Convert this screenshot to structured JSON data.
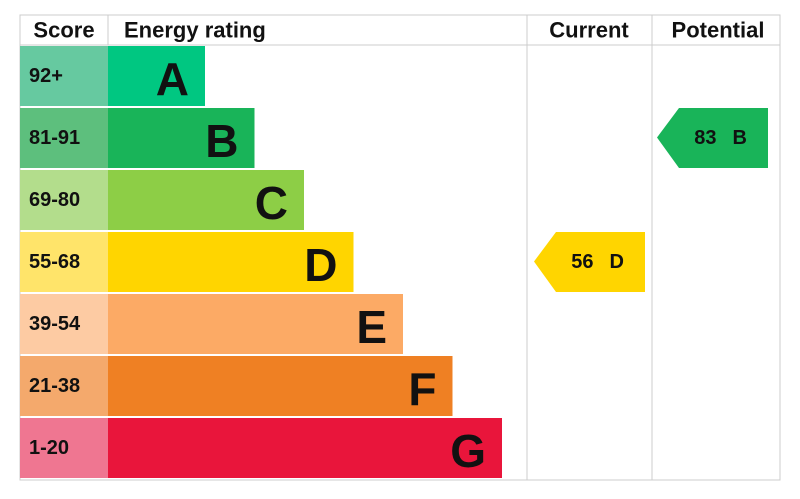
{
  "headers": {
    "score": "Score",
    "energy_rating": "Energy rating",
    "current": "Current",
    "potential": "Potential"
  },
  "bands": [
    {
      "score": "92+",
      "letter": "A"
    },
    {
      "score": "81-91",
      "letter": "B"
    },
    {
      "score": "69-80",
      "letter": "C"
    },
    {
      "score": "55-68",
      "letter": "D"
    },
    {
      "score": "39-54",
      "letter": "E"
    },
    {
      "score": "21-38",
      "letter": "F"
    },
    {
      "score": "1-20",
      "letter": "G"
    }
  ],
  "current": {
    "value": 56,
    "letter": "D"
  },
  "potential": {
    "value": 83,
    "letter": "B"
  }
}
